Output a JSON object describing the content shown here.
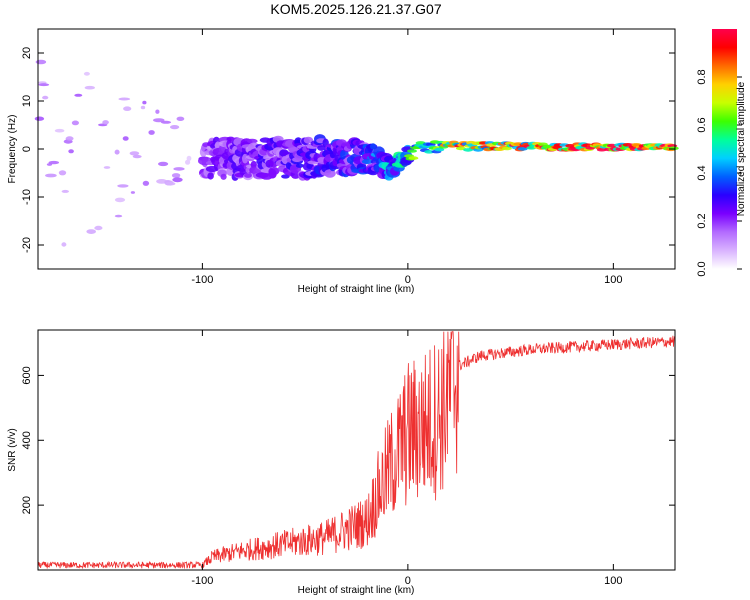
{
  "title": "KOM5.2025.126.21.37.G07",
  "chart_data": [
    {
      "type": "heatmap",
      "xlabel": "Height of straight line (km)",
      "ylabel": "Frequency (Hz)",
      "xlim": [
        -180,
        130
      ],
      "ylim": [
        -25,
        25
      ],
      "xticks": [
        -100,
        0,
        100
      ],
      "yticks": [
        -20,
        -10,
        0,
        10,
        20
      ],
      "colorbar": {
        "label": "Normalized spectral amplitude",
        "range": [
          0,
          1
        ],
        "ticks": [
          "0.0",
          "0.2",
          "0.4",
          "0.6",
          "0.8"
        ],
        "colormap": [
          "#ffffff",
          "#d9b3ff",
          "#b36bff",
          "#7a00ff",
          "#2a00ff",
          "#0060ff",
          "#00cfff",
          "#00ff9a",
          "#3cff00",
          "#c8ff00",
          "#ffd000",
          "#ff6a00",
          "#ff0000",
          "#ff004c"
        ]
      },
      "trend": {
        "description_points": [
          {
            "x": -180,
            "freq_spread_hz": 24,
            "amplitude": 0.05
          },
          {
            "x": -100,
            "freq_spread_hz": 4,
            "amplitude": 0.2
          },
          {
            "x": -50,
            "freq_spread_hz": 4,
            "amplitude": 0.25
          },
          {
            "x": -20,
            "freq_spread_hz": 3,
            "amplitude": 0.3
          },
          {
            "x": 0,
            "freq_spread_hz": 1.5,
            "amplitude": 0.5
          },
          {
            "x": 20,
            "freq_spread_hz": 0.8,
            "amplitude": 0.75
          },
          {
            "x": 130,
            "freq_spread_hz": 0.5,
            "amplitude": 0.9
          }
        ],
        "center_freq_hz": [
          {
            "x": -100,
            "f": -2
          },
          {
            "x": -20,
            "f": -1.5
          },
          {
            "x": -8,
            "f": -4
          },
          {
            "x": 0,
            "f": -1
          },
          {
            "x": 8,
            "f": 0.3
          },
          {
            "x": 20,
            "f": 0.6
          },
          {
            "x": 130,
            "f": 0.3
          }
        ]
      }
    },
    {
      "type": "line",
      "xlabel": "Height of straight line (km)",
      "ylabel": "SNR (v/v)",
      "xlim": [
        -180,
        130
      ],
      "ylim": [
        0,
        740
      ],
      "xticks": [
        -100,
        0,
        100
      ],
      "yticks": [
        200,
        400,
        600
      ],
      "series": [
        {
          "color": "#ee3030",
          "trend_points": [
            {
              "x": -180,
              "y": 15
            },
            {
              "x": -100,
              "y": 15
            },
            {
              "x": -95,
              "y": 40
            },
            {
              "x": -80,
              "y": 60
            },
            {
              "x": -60,
              "y": 80
            },
            {
              "x": -40,
              "y": 100
            },
            {
              "x": -20,
              "y": 150
            },
            {
              "x": -15,
              "y": 230
            },
            {
              "x": -10,
              "y": 300
            },
            {
              "x": 0,
              "y": 420
            },
            {
              "x": 10,
              "y": 450
            },
            {
              "x": 15,
              "y": 480
            },
            {
              "x": 20,
              "y": 550
            },
            {
              "x": 25,
              "y": 630
            },
            {
              "x": 35,
              "y": 660
            },
            {
              "x": 60,
              "y": 680
            },
            {
              "x": 100,
              "y": 695
            },
            {
              "x": 130,
              "y": 705
            }
          ]
        }
      ]
    }
  ]
}
